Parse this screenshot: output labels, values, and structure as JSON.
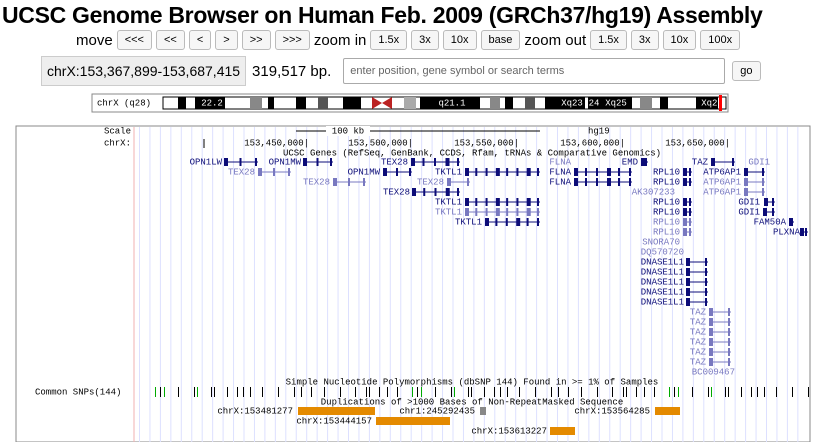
{
  "header": {
    "title": "UCSC Genome Browser on Human Feb. 2009 (GRCh37/hg19) Assembly"
  },
  "nav": {
    "move_label": "move",
    "move_buttons": [
      "<<<",
      "<<",
      "<",
      ">",
      ">>",
      ">>>"
    ],
    "zoom_in_label": "zoom in",
    "zoom_in_buttons": [
      "1.5x",
      "3x",
      "10x",
      "base"
    ],
    "zoom_out_label": "zoom out",
    "zoom_out_buttons": [
      "1.5x",
      "3x",
      "10x",
      "100x"
    ]
  },
  "position": {
    "value": "chrX:153,367,899-153,687,415",
    "size": "319,517 bp."
  },
  "search": {
    "placeholder": "enter position, gene symbol or search terms",
    "button": "go"
  },
  "ideogram": {
    "label": "chrX (q28)",
    "bands": [
      "22.2",
      "q21.1",
      "Xq23",
      "24",
      "Xq25",
      "Xq28"
    ]
  },
  "scale": {
    "label": "Scale",
    "span": "100 kb",
    "assembly": "hg19",
    "chrom_label": "chrX:",
    "positions": [
      "153,450,000|",
      "153,500,000|",
      "153,550,000|",
      "153,600,000|",
      "153,650,000|"
    ]
  },
  "genes": {
    "title": "UCSC Genes (RefSeq, GenBank, CCDS, Rfam, tRNAs & Comparative Genomics)",
    "items": [
      "OPN1LW",
      "OPN1MW",
      "TEX28",
      "FLNA",
      "EMD",
      "TAZ",
      "GDI1",
      "TEX28",
      "OPN1MW",
      "TKTL1",
      "FLNA",
      "RPL10",
      "ATP6AP1",
      "TEX28",
      "TEX28",
      "FLNA",
      "RPL10",
      "ATP6AP1",
      "TEX28",
      "AK307233",
      "ATP6AP1",
      "TKTL1",
      "RPL10",
      "GDI1",
      "TKTL1",
      "RPL10",
      "GDI1",
      "TKTL1",
      "RPL10",
      "FAM50A",
      "RPL10",
      "PLXNA",
      "SNORA70",
      "DQ570720",
      "DNASE1L1",
      "DNASE1L1",
      "DNASE1L1",
      "DNASE1L1",
      "DNASE1L1",
      "TAZ",
      "TAZ",
      "TAZ",
      "TAZ",
      "TAZ",
      "TAZ",
      "BC009467"
    ]
  },
  "snps": {
    "title": "Simple Nucleotide Polymorphisms (dbSNP 144) Found in >= 1% of Samples",
    "track_label": "Common SNPs(144)"
  },
  "segdups": {
    "title": "Duplications of >1000 Bases of Non-RepeatMasked Sequence",
    "items": [
      "chrX:153481277",
      "chr1:245292435",
      "chrX:153564285",
      "chrX:153444157",
      "chrX:153613227"
    ]
  }
}
